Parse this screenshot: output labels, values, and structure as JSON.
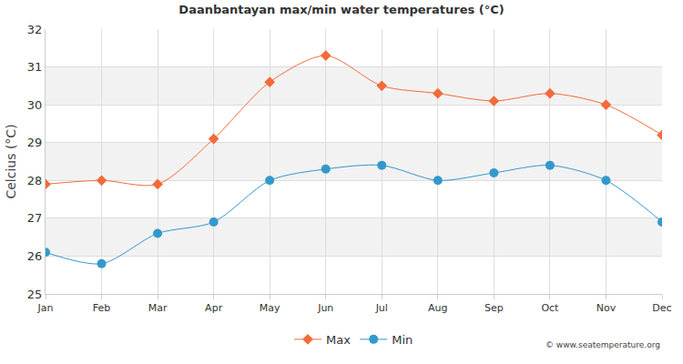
{
  "chart_data": {
    "type": "line",
    "title": "Daanbantayan max/min water temperatures (°C)",
    "y_label": "Celcius (°C)",
    "categories": [
      "Jan",
      "Feb",
      "Mar",
      "Apr",
      "May",
      "Jun",
      "Jul",
      "Aug",
      "Sep",
      "Oct",
      "Nov",
      "Dec"
    ],
    "series": [
      {
        "name": "Max",
        "color": "#f26b3a",
        "marker": "diamond",
        "values": [
          27.9,
          28.0,
          27.9,
          29.1,
          30.6,
          31.3,
          30.5,
          30.3,
          30.1,
          30.3,
          30.0,
          29.2
        ]
      },
      {
        "name": "Min",
        "color": "#3399cc",
        "marker": "circle",
        "values": [
          26.1,
          25.8,
          26.6,
          26.9,
          28.0,
          28.3,
          28.4,
          28.0,
          28.2,
          28.4,
          28.0,
          26.9
        ]
      }
    ],
    "ylim": [
      25,
      32
    ],
    "yticks": [
      25,
      26,
      27,
      28,
      29,
      30,
      31,
      32
    ],
    "grid": true,
    "legend": "bottom",
    "annotations": [
      "© www.seatemperature.org"
    ]
  }
}
